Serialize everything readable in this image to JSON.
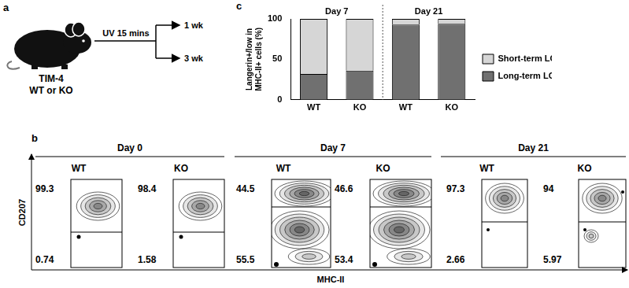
{
  "panel_labels": [
    "a",
    "b",
    "c"
  ],
  "panel_a": {
    "mouse_label": [
      "TIM-4",
      "WT or KO"
    ],
    "treatment": "UV 15 mins",
    "timepoints": [
      "1 wk",
      "3 wk"
    ]
  },
  "chart_data": {
    "type": "bar",
    "stacked": true,
    "categories": [
      "WT",
      "KO",
      "WT",
      "KO"
    ],
    "groups": [
      {
        "name": "Day 7",
        "size": 2
      },
      {
        "name": "Day 21",
        "size": 2
      }
    ],
    "y_label": [
      "Langerin+/low in",
      "MHC-II+ cells (%)"
    ],
    "ylim": [
      0,
      100
    ],
    "yticks": [
      0,
      50,
      100
    ],
    "grid": false,
    "legend": "right",
    "series": [
      {
        "name": "Long-term LCs",
        "color": "#707070",
        "values": [
          32,
          36,
          93,
          94
        ]
      },
      {
        "name": "Short-term LCs",
        "color": "#d6d6d6",
        "values": [
          68,
          64,
          7,
          6
        ]
      }
    ]
  },
  "panel_b": {
    "y_axis_label": "CD207",
    "x_axis_label": "MHC-II",
    "days": [
      {
        "name": "Day 0",
        "plots": [
          {
            "genotype": "WT",
            "upper": 99.3,
            "lower": 0.74
          },
          {
            "genotype": "KO",
            "upper": 98.4,
            "lower": 1.58
          }
        ]
      },
      {
        "name": "Day 7",
        "plots": [
          {
            "genotype": "WT",
            "upper": 44.5,
            "lower": 55.5
          },
          {
            "genotype": "KO",
            "upper": 46.6,
            "lower": 53.4
          }
        ]
      },
      {
        "name": "Day 21",
        "plots": [
          {
            "genotype": "WT",
            "upper": 97.3,
            "lower": 2.66
          },
          {
            "genotype": "KO",
            "upper": 94,
            "lower": 5.97
          }
        ]
      }
    ]
  }
}
